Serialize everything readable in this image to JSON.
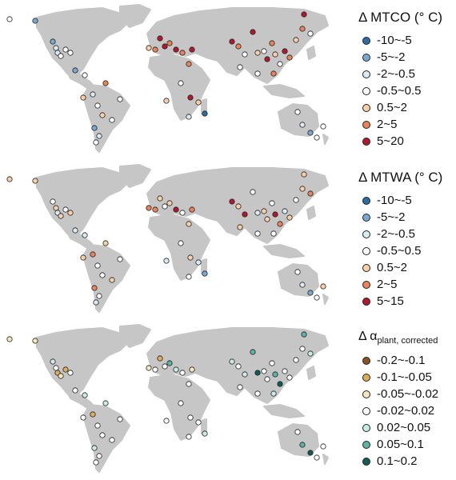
{
  "land_color": "#c6c6c6",
  "panels": [
    {
      "legend": {
        "title": "Δ MTCO (° C)",
        "items": [
          {
            "label": "-10~-5",
            "color": "#2c6ea3"
          },
          {
            "label": "-5~-2",
            "color": "#78a9d0"
          },
          {
            "label": "-2~-0.5",
            "color": "#d9ecf3"
          },
          {
            "label": "-0.5~0.5",
            "color": "#ffffff"
          },
          {
            "label": "0.5~2",
            "color": "#f8cfa8"
          },
          {
            "label": "2~5",
            "color": "#e9835a"
          },
          {
            "label": "5~20",
            "color": "#b3182c"
          }
        ]
      }
    },
    {
      "legend": {
        "title": "Δ MTWA (° C)",
        "items": [
          {
            "label": "-10~-5",
            "color": "#2c6ea3"
          },
          {
            "label": "-5~-2",
            "color": "#78a9d0"
          },
          {
            "label": "-2~-0.5",
            "color": "#d9ecf3"
          },
          {
            "label": "-0.5~0.5",
            "color": "#ffffff"
          },
          {
            "label": "0.5~2",
            "color": "#f8cfa8"
          },
          {
            "label": "2~5",
            "color": "#e9835a"
          },
          {
            "label": "5~15",
            "color": "#b3182c"
          }
        ]
      }
    },
    {
      "legend": {
        "title_prefix": "Δ α",
        "title_sub": "plant, corrected",
        "items": [
          {
            "label": "-0.2~-0.1",
            "color": "#8c5220"
          },
          {
            "label": "-0.1~-0.05",
            "color": "#dcae57"
          },
          {
            "label": "-0.05~-0.02",
            "color": "#f6e6bd"
          },
          {
            "label": "-0.02~0.02",
            "color": "#ffffff"
          },
          {
            "label": "0.02~0.05",
            "color": "#c9ebe6"
          },
          {
            "label": "0.05~0.1",
            "color": "#5ab4a8"
          },
          {
            "label": "0.1~0.2",
            "color": "#0f5d56"
          }
        ]
      }
    }
  ]
}
